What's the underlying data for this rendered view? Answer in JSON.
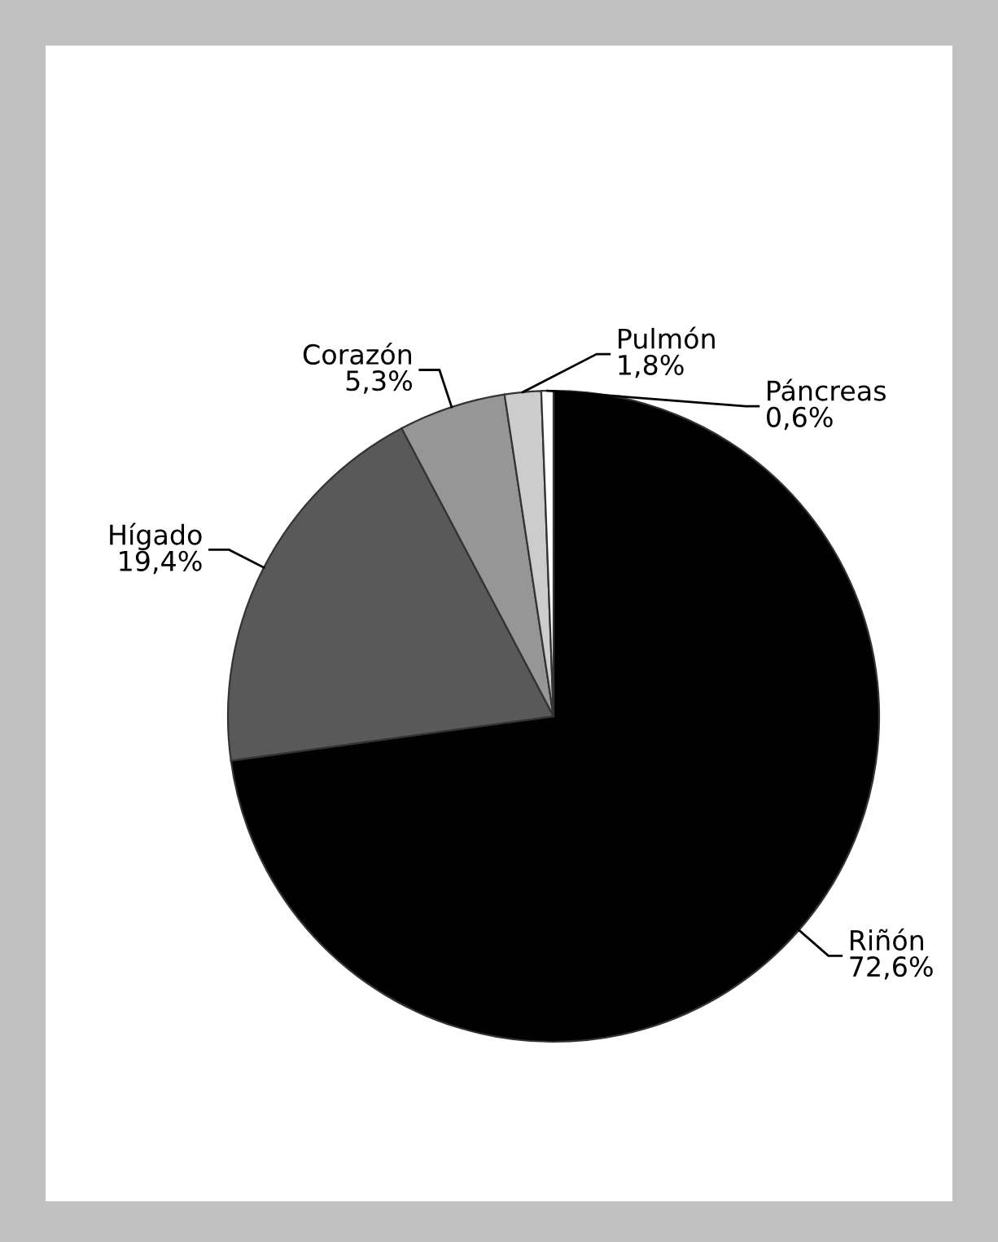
{
  "chart_data": {
    "type": "pie",
    "categories": [
      "Riñón",
      "Hígado",
      "Corazón",
      "Pulmón",
      "Páncreas"
    ],
    "values": [
      72.6,
      19.4,
      5.3,
      1.8,
      0.6
    ],
    "colors": [
      "#000000",
      "#595959",
      "#969696",
      "#cccccc",
      "#ffffff"
    ],
    "value_labels": [
      "72,6%",
      "19,4%",
      "5,3%",
      "1,8%",
      "0,6%"
    ]
  }
}
